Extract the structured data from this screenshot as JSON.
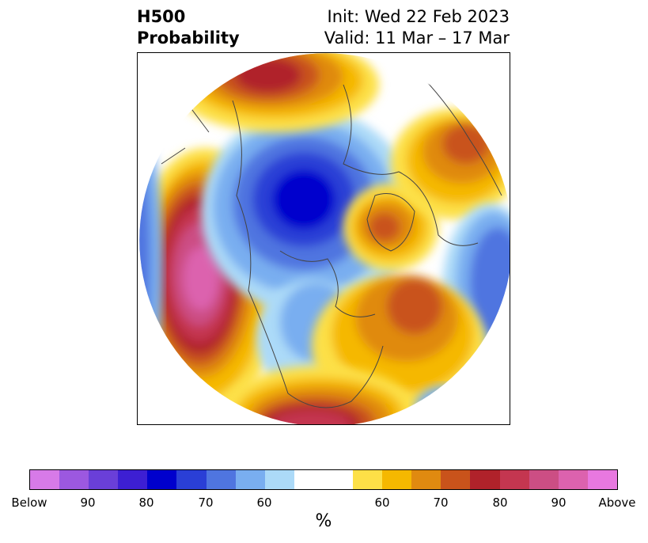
{
  "title": {
    "line1": "H500",
    "line2": "Probability"
  },
  "subtitle": {
    "init": "Init: Wed 22 Feb 2023",
    "valid": "Valid: 11 Mar – 17 Mar"
  },
  "colorbar": {
    "unit": "%",
    "colors": [
      "#d77ae8",
      "#9c58e0",
      "#6a3fd8",
      "#3d1fd3",
      "#0000cd",
      "#2a3fd6",
      "#4f75e0",
      "#79aef0",
      "#acdaf8",
      "#ffffff",
      "#ffffff",
      "#fde047",
      "#f5b800",
      "#e08a10",
      "#c9531b",
      "#b0222a",
      "#c43650",
      "#cc4e84",
      "#dc62ae",
      "#e878e0"
    ],
    "tick_labels": [
      "Below",
      "90",
      "80",
      "70",
      "60",
      "60",
      "70",
      "80",
      "90",
      "Above"
    ]
  }
}
